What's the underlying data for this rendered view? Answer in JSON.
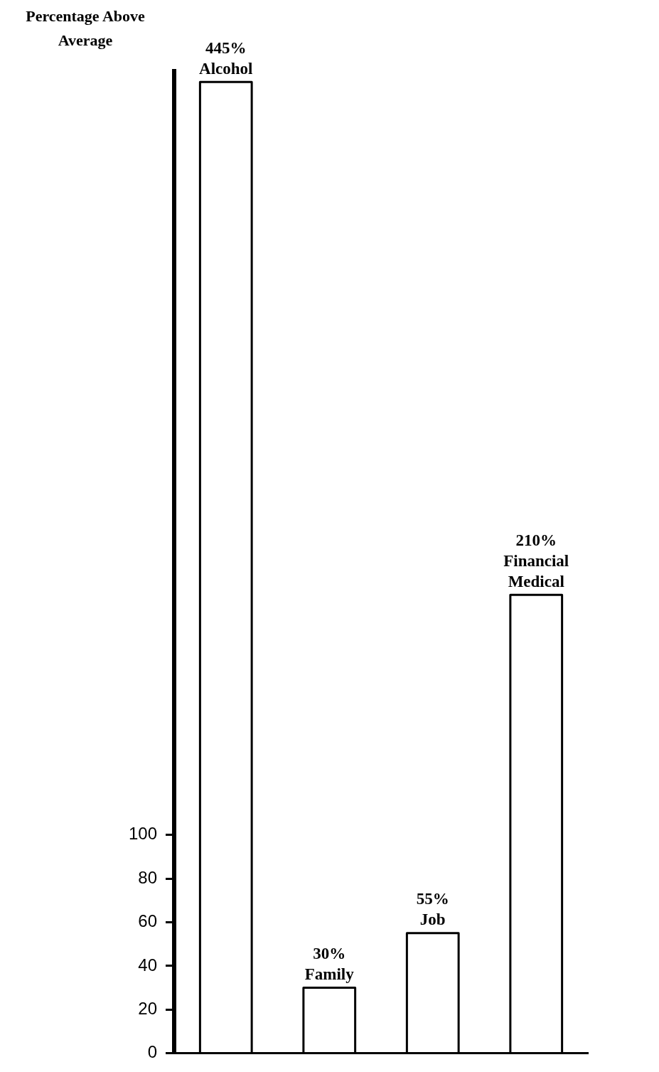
{
  "chart_data": {
    "type": "bar",
    "ylabel": "Percentage Above Average",
    "categories": [
      "Alcohol",
      "Family",
      "Job",
      "Financial Medical"
    ],
    "values": [
      445,
      30,
      55,
      210
    ],
    "value_labels": [
      "445%",
      "30%",
      "55%",
      "210%"
    ],
    "color": "#ffffff",
    "ylim": [
      0,
      450
    ],
    "yticks": [
      0,
      20,
      40,
      60,
      80,
      100
    ],
    "grid": false,
    "legend": false,
    "tick_labels": "y"
  }
}
